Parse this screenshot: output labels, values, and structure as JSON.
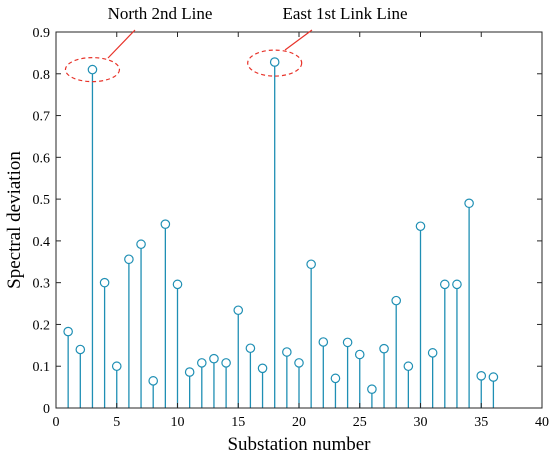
{
  "chart_data": {
    "type": "stem",
    "title": "",
    "xlabel": "Substation number",
    "ylabel": "Spectral deviation",
    "xlim": [
      0,
      40
    ],
    "ylim": [
      0,
      0.9
    ],
    "xticks": [
      0,
      5,
      10,
      15,
      20,
      25,
      30,
      35,
      40
    ],
    "xtick_labels": [
      "0",
      "5",
      "10",
      "15",
      "20",
      "25",
      "30",
      "35",
      "40"
    ],
    "yticks": [
      0,
      0.1,
      0.2,
      0.3,
      0.4,
      0.5,
      0.6,
      0.7,
      0.8,
      0.9
    ],
    "ytick_labels": [
      "0",
      "0.1",
      "0.2",
      "0.3",
      "0.4",
      "0.5",
      "0.6",
      "0.7",
      "0.8",
      "0.9"
    ],
    "grid": false,
    "legend": "none",
    "series": [
      {
        "x": [
          1,
          2,
          3,
          4,
          5,
          6,
          7,
          8,
          9,
          10,
          11,
          12,
          13,
          14,
          15,
          16,
          17,
          18,
          19,
          20,
          21,
          22,
          23,
          24,
          25,
          26,
          27,
          28,
          29,
          30,
          31,
          32,
          33,
          34,
          35,
          36
        ],
        "values": [
          0.183,
          0.14,
          0.81,
          0.3,
          0.1,
          0.356,
          0.392,
          0.065,
          0.44,
          0.296,
          0.086,
          0.108,
          0.118,
          0.108,
          0.234,
          0.143,
          0.095,
          0.828,
          0.134,
          0.108,
          0.344,
          0.158,
          0.071,
          0.157,
          0.128,
          0.045,
          0.142,
          0.257,
          0.1,
          0.435,
          0.132,
          0.296,
          0.296,
          0.49,
          0.077,
          0.074
        ]
      }
    ],
    "annotations": [
      {
        "text": "North 2nd Line",
        "target_x": 3,
        "target_y": 0.81
      },
      {
        "text": "East 1st Link Line",
        "target_x": 18,
        "target_y": 0.828
      }
    ],
    "colors": {
      "stem": "#1f8fb4",
      "annotation_ellipse": "#e8332a",
      "axes": "#262626",
      "text": "#000000"
    }
  }
}
